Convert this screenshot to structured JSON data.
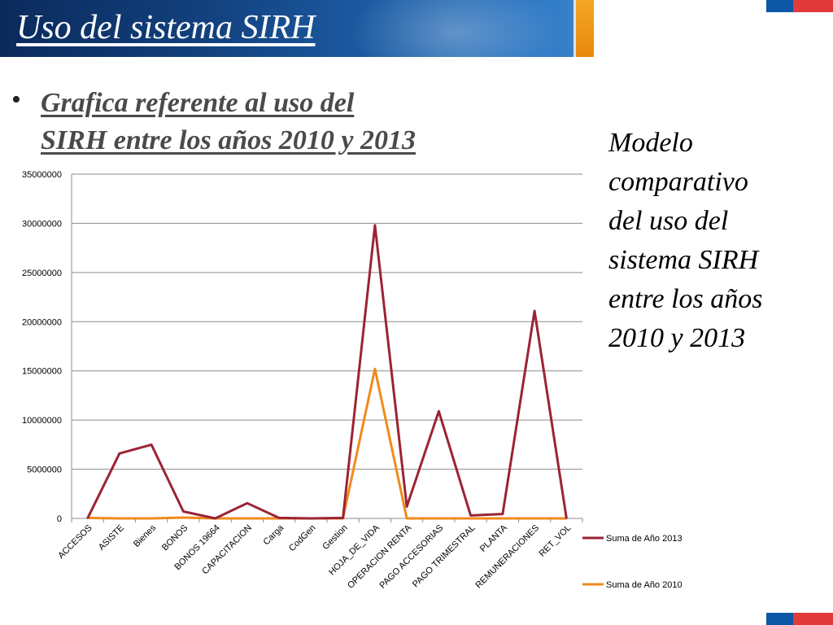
{
  "header": {
    "title": "Uso del sistema SIRH"
  },
  "bullet": {
    "symbol": "•",
    "text_line1": "Grafica referente al uso del",
    "text_line2": "SIRH entre los años 2010 y 2013"
  },
  "side_note": {
    "lines": [
      "Modelo",
      "comparativo",
      "del uso del",
      "sistema SIRH",
      "entre los años",
      "2010 y 2013"
    ]
  },
  "colors": {
    "series_2013": "#9b2335",
    "series_2010": "#f08a1c",
    "title_bar": "#12417e",
    "flag_blue": "#0b57a6",
    "flag_red": "#e03a3a"
  },
  "chart_data": {
    "type": "line",
    "categories": [
      "ACCESOS",
      "ASISTE",
      "Bienes",
      "BONOS",
      "BONOS 19664",
      "CAPACITACION",
      "Carga",
      "CodGen",
      "Gestion",
      "HOJA_DE_VIDA",
      "OPERACION RENTA",
      "PAGO ACCESORIAS",
      "PAGO TRIMESTRAL",
      "PLANTA",
      "REMUNERACIONES",
      "RET_VOL"
    ],
    "series": [
      {
        "name": "Suma de Año 2013",
        "values": [
          0,
          6600000,
          7500000,
          700000,
          0,
          1550000,
          50000,
          0,
          50000,
          29800000,
          1200000,
          10900000,
          300000,
          450000,
          21100000,
          0
        ]
      },
      {
        "name": "Suma de Año 2010",
        "values": [
          50000,
          0,
          0,
          80000,
          0,
          0,
          0,
          0,
          0,
          15200000,
          0,
          0,
          0,
          0,
          0,
          0
        ]
      }
    ],
    "yticks": [
      0,
      5000000,
      10000000,
      15000000,
      20000000,
      25000000,
      30000000,
      35000000
    ],
    "ylim": [
      0,
      35000000
    ],
    "grid": true,
    "legend_position": "right"
  }
}
